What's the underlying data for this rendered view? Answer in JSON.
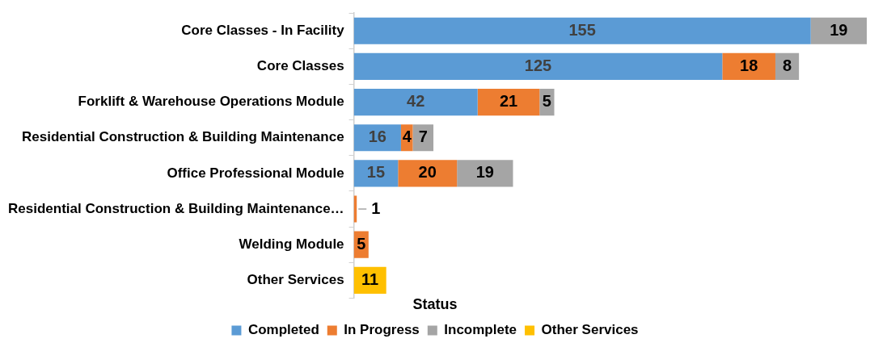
{
  "chart_data": {
    "type": "bar",
    "orientation": "horizontal",
    "stacked": true,
    "data_labels": true,
    "legend": "bottom",
    "legend_title": "Status",
    "grid": false,
    "categories": [
      "Core Classes - In Facility",
      "Core Classes",
      "Forklift & Warehouse Operations Module",
      "Residential Construction & Building Maintenance",
      "Office Professional Module",
      "Residential Construction & Building Maintenance…",
      "Welding Module",
      "Other Services"
    ],
    "series": [
      {
        "name": "Completed",
        "color": "#5b9bd5",
        "values": [
          155,
          125,
          42,
          16,
          15,
          null,
          null,
          null
        ]
      },
      {
        "name": "In Progress",
        "color": "#ed7d31",
        "values": [
          null,
          18,
          21,
          4,
          20,
          1,
          5,
          null
        ]
      },
      {
        "name": "Incomplete",
        "color": "#a5a5a5",
        "values": [
          19,
          8,
          5,
          7,
          19,
          null,
          null,
          null
        ]
      },
      {
        "name": "Other Services",
        "color": "#ffc000",
        "values": [
          null,
          null,
          null,
          null,
          null,
          null,
          null,
          11
        ]
      }
    ]
  }
}
